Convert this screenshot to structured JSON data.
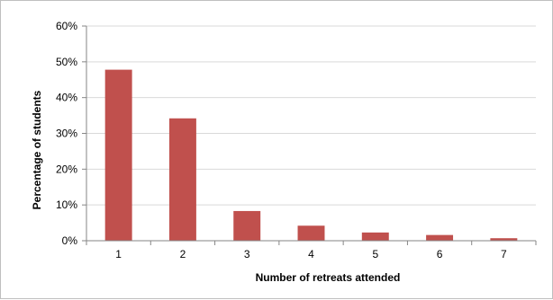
{
  "chart_data": {
    "type": "bar",
    "title": "",
    "xlabel": "Number of retreats attended",
    "ylabel": "Percentage of students",
    "categories": [
      "1",
      "2",
      "3",
      "4",
      "5",
      "6",
      "7"
    ],
    "values": [
      47.8,
      34.2,
      8.3,
      4.2,
      2.3,
      1.6,
      0.7
    ],
    "ylim": [
      0,
      60
    ],
    "yticks": [
      0,
      10,
      20,
      30,
      40,
      50,
      60
    ],
    "ytick_labels": [
      "0%",
      "10%",
      "20%",
      "30%",
      "40%",
      "50%",
      "60%"
    ],
    "grid": true,
    "legend": "none",
    "bar_color": "#c0504d",
    "grid_color": "#d9d9d9",
    "axis_color": "#868686"
  }
}
